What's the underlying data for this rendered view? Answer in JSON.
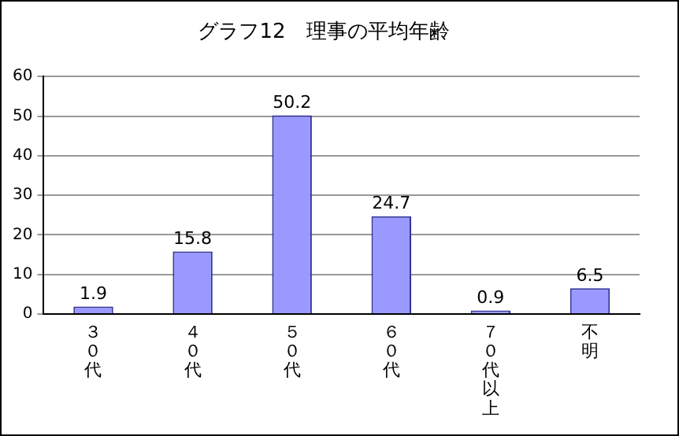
{
  "chart_data": {
    "type": "bar",
    "title": "グラフ12　理事の平均年齢",
    "categories": [
      "３０代",
      "４０代",
      "５０代",
      "６０代",
      "７０代以上",
      "不明"
    ],
    "values": [
      1.9,
      15.8,
      50.2,
      24.7,
      0.9,
      6.5
    ],
    "color": "#9999ff",
    "ylim": [
      0,
      60
    ],
    "yticks": [
      0,
      10,
      20,
      30,
      40,
      50,
      60
    ],
    "grid": "y",
    "legend": false,
    "data_labels": true
  }
}
